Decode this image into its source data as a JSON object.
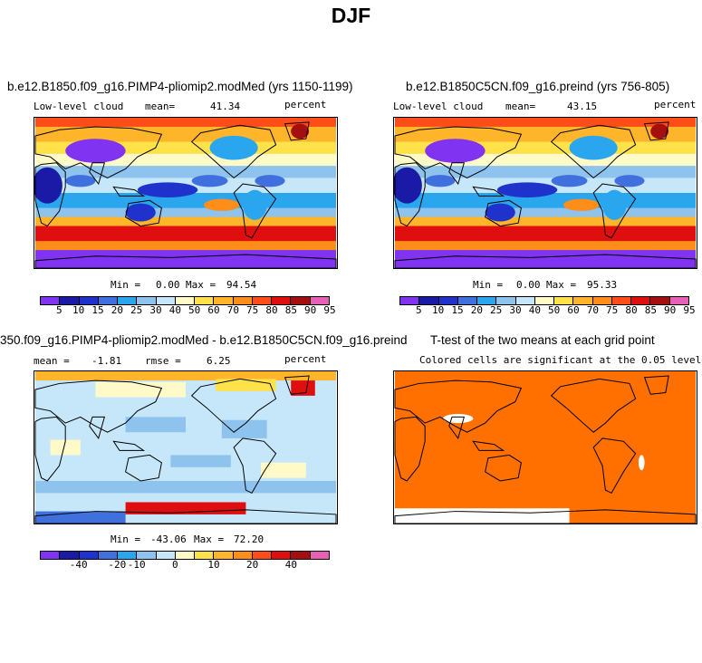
{
  "page_title": "DJF",
  "colors": {
    "abs": [
      "#8033f0",
      "#1a1aa6",
      "#1f33cc",
      "#4070dd",
      "#29a6ee",
      "#8ec3ee",
      "#c6e6fa",
      "#fffac8",
      "#ffe14a",
      "#ffb529",
      "#ff8d1a",
      "#ff4d1a",
      "#e00f0f",
      "#a50f0f",
      "#e85fb6"
    ],
    "diff": [
      "#8033f0",
      "#1a1aa6",
      "#1f33cc",
      "#4070dd",
      "#29a6ee",
      "#8ec3ee",
      "#c6e6fa",
      "#fffac8",
      "#ffe14a",
      "#ffb529",
      "#ff8d1a",
      "#ff4d1a",
      "#e00f0f",
      "#a50f0f",
      "#e85fb6"
    ],
    "ttest_fill": "#ff7000"
  },
  "chart_data": [
    {
      "type": "heatmap",
      "title": "b.e12.B1850.f09_g16.PIMP4-pliomip2.modMed (yrs 1150-1199)",
      "left_label": "Low-level cloud",
      "mean_label": "mean=",
      "mean": "41.34",
      "units": "percent",
      "min_label": "Min =",
      "min": "0.00",
      "max_label": "Max =",
      "max": "94.54",
      "colorbar_ticks": [
        "5",
        "10",
        "15",
        "20",
        "25",
        "30",
        "40",
        "50",
        "60",
        "70",
        "75",
        "80",
        "85",
        "90",
        "95"
      ]
    },
    {
      "type": "heatmap",
      "title": "b.e12.B1850C5CN.f09_g16.preind (yrs 756-805)",
      "left_label": "Low-level cloud",
      "mean_label": "mean=",
      "mean": "43.15",
      "units": "percent",
      "min_label": "Min =",
      "min": "0.00",
      "max_label": "Max =",
      "max": "95.33",
      "colorbar_ticks": [
        "5",
        "10",
        "15",
        "20",
        "25",
        "30",
        "40",
        "50",
        "60",
        "70",
        "75",
        "80",
        "85",
        "90",
        "95"
      ]
    },
    {
      "type": "heatmap",
      "title": "350.f09_g16.PIMP4-pliomip2.modMed - b.e12.B1850C5CN.f09_g16.preind",
      "mean_label": "mean =",
      "mean": "-1.81",
      "rmse_label": "rmse =",
      "rmse": "6.25",
      "units": "percent",
      "min_label": "Min =",
      "min": "-43.06",
      "max_label": "Max =",
      "max": "72.20",
      "colorbar_ticks": [
        "-40",
        "-20",
        "-10",
        "0",
        "10",
        "20",
        "40"
      ]
    },
    {
      "type": "heatmap",
      "title": "T-test of the two means at each grid point",
      "subtitle": "Colored cells are significant at the 0.05 level"
    }
  ]
}
